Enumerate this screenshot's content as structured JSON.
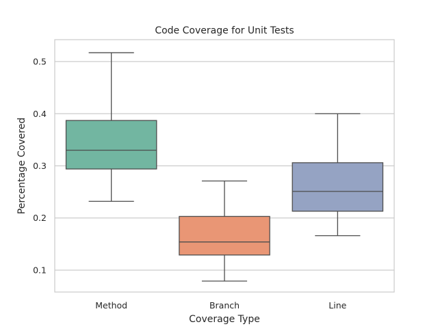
{
  "chart_data": {
    "type": "box",
    "title": "Code Coverage for Unit Tests",
    "xlabel": "Coverage Type",
    "ylabel": "Percentage Covered",
    "ylim": [
      0.058,
      0.542
    ],
    "yticks": [
      0.1,
      0.2,
      0.3,
      0.4,
      0.5
    ],
    "ytick_labels": [
      "0.1",
      "0.2",
      "0.3",
      "0.4",
      "0.5"
    ],
    "grid": true,
    "categories": [
      "Method",
      "Branch",
      "Line"
    ],
    "boxes": [
      {
        "name": "Method",
        "whisker_low": 0.232,
        "q1": 0.294,
        "median": 0.33,
        "q3": 0.387,
        "whisker_high": 0.517,
        "color": "#72b6a1"
      },
      {
        "name": "Branch",
        "whisker_low": 0.079,
        "q1": 0.129,
        "median": 0.154,
        "q3": 0.203,
        "whisker_high": 0.271,
        "color": "#e99675"
      },
      {
        "name": "Line",
        "whisker_low": 0.166,
        "q1": 0.213,
        "median": 0.251,
        "q3": 0.306,
        "whisker_high": 0.4,
        "color": "#95a3c3"
      }
    ],
    "colors": {
      "grid": "#cccccc",
      "frame": "#cccccc",
      "line": "#4d4d4d"
    }
  }
}
